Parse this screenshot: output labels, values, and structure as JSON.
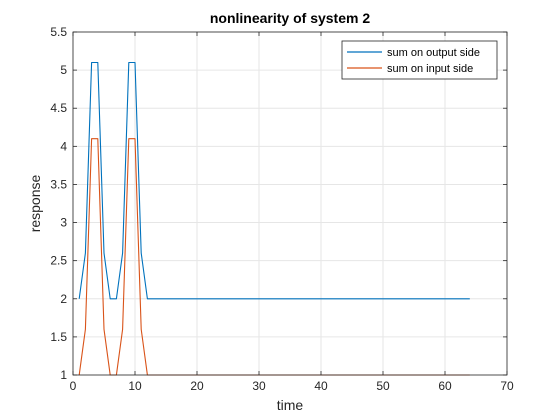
{
  "chart_data": {
    "type": "line",
    "title": "nonlinearity of system 2",
    "xlabel": "time",
    "ylabel": "response",
    "xlim": [
      0,
      70
    ],
    "ylim": [
      1,
      5.5
    ],
    "xticks": [
      0,
      10,
      20,
      30,
      40,
      50,
      60,
      70
    ],
    "yticks": [
      1,
      1.5,
      2,
      2.5,
      3,
      3.5,
      4,
      4.5,
      5,
      5.5
    ],
    "xtick_labels": [
      "0",
      "10",
      "20",
      "30",
      "40",
      "50",
      "60",
      "70"
    ],
    "ytick_labels": [
      "1",
      "1.5",
      "2",
      "2.5",
      "3",
      "3.5",
      "4",
      "4.5",
      "5",
      "5.5"
    ],
    "grid": true,
    "legend_position": "top-right",
    "series": [
      {
        "name": "sum on output side",
        "color": "#0072bd",
        "x": [
          1,
          2,
          3,
          4,
          5,
          6,
          7,
          8,
          9,
          10,
          11,
          12,
          13,
          64
        ],
        "y": [
          2,
          2.6,
          5.1,
          5.1,
          2.6,
          2,
          2,
          2.6,
          5.1,
          5.1,
          2.6,
          2,
          2,
          2
        ]
      },
      {
        "name": "sum on input side",
        "color": "#d95319",
        "x": [
          1,
          2,
          3,
          4,
          5,
          6,
          7,
          8,
          9,
          10,
          11,
          12,
          13,
          64
        ],
        "y": [
          1,
          1.6,
          4.1,
          4.1,
          1.6,
          1,
          1,
          1.6,
          4.1,
          4.1,
          1.6,
          1,
          1,
          1
        ]
      }
    ]
  }
}
